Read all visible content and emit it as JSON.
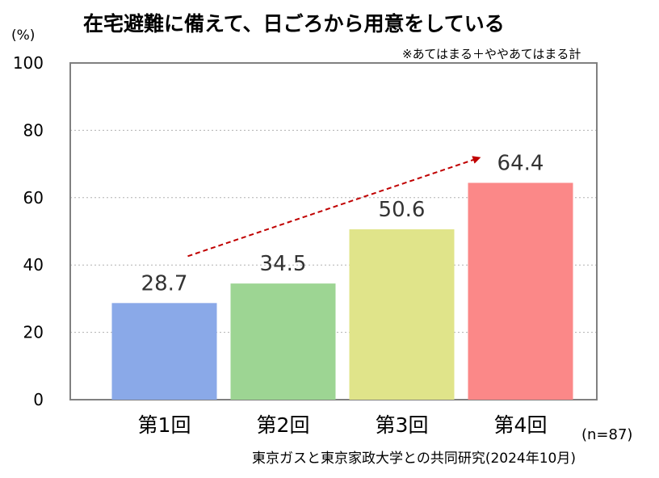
{
  "chart_data": {
    "type": "bar",
    "title": "在宅避難に備えて、日ごろから用意をしている",
    "unit_label": "(%)",
    "note": "※あてはまる＋ややあてはまる計",
    "categories": [
      "第1回",
      "第2回",
      "第3回",
      "第4回"
    ],
    "values": [
      28.7,
      34.5,
      50.6,
      64.4
    ],
    "value_labels": [
      "28.7",
      "34.5",
      "50.6",
      "64.4"
    ],
    "colors": [
      "#8aa9e8",
      "#9dd593",
      "#e0e48a",
      "#fb8888"
    ],
    "ylim": [
      0,
      100
    ],
    "yticks": [
      0,
      20,
      40,
      60,
      80,
      100
    ],
    "grid": true,
    "trend_arrow": true,
    "trend_color": "#c00000",
    "sample_note": "(n=87)",
    "source": "東京ガスと東京家政大学との共同研究(2024年10月)"
  }
}
